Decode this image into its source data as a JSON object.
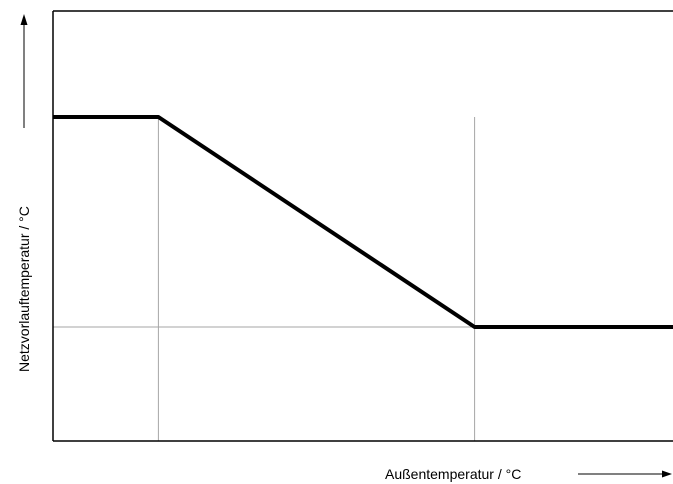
{
  "chart_data": {
    "type": "line",
    "title": "",
    "xlabel": "Außentemperatur / °C",
    "ylabel": "Netzvorlauftemperatur / °C",
    "x_tick_labels": [],
    "y_tick_labels": [],
    "grid": false,
    "legend": "none",
    "xlim": [
      0,
      100
    ],
    "ylim": [
      0,
      100
    ],
    "series": [
      {
        "x": [
          0,
          17,
          68,
          100
        ],
        "y": [
          100,
          100,
          36,
          36
        ]
      }
    ],
    "reference_lines": [
      {
        "orientation": "vertical",
        "x": 17
      },
      {
        "orientation": "vertical",
        "x": 68
      },
      {
        "orientation": "horizontal",
        "y": 36
      }
    ],
    "colors": {
      "curve": "#000000",
      "axes": "#000000",
      "reference": "#a6a6a6"
    }
  }
}
